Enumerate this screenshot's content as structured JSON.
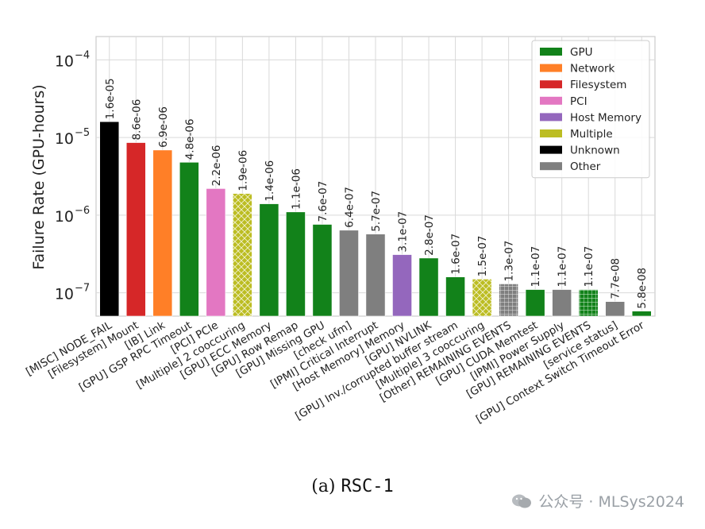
{
  "chart_data": {
    "type": "bar",
    "ylabel": "Failure Rate (GPU-hours)",
    "yscale": "log",
    "ylim": [
      5e-08,
      0.0002
    ],
    "yticks": [
      {
        "value": 1e-07,
        "base": "10",
        "exp": "−7"
      },
      {
        "value": 1e-06,
        "base": "10",
        "exp": "−6"
      },
      {
        "value": 1e-05,
        "base": "10",
        "exp": "−5"
      },
      {
        "value": 0.0001,
        "base": "10",
        "exp": "−4"
      }
    ],
    "grid": true,
    "legend_position": "top-right",
    "legend": [
      {
        "name": "GPU",
        "color": "#12821a"
      },
      {
        "name": "Network",
        "color": "#ff7f27"
      },
      {
        "name": "Filesystem",
        "color": "#d62728"
      },
      {
        "name": "PCI",
        "color": "#e377c2"
      },
      {
        "name": "Host Memory",
        "color": "#9467bd"
      },
      {
        "name": "Multiple",
        "color": "#bcbd22"
      },
      {
        "name": "Unknown",
        "color": "#000000"
      },
      {
        "name": "Other",
        "color": "#7f7f7f"
      }
    ],
    "bars": [
      {
        "category": "[MISC] NODE_FAIL",
        "value": 1.6e-05,
        "label": "1.6e-05",
        "group": "Unknown",
        "hatch": "none"
      },
      {
        "category": "[Filesystem] Mount",
        "value": 8.6e-06,
        "label": "8.6e-06",
        "group": "Filesystem",
        "hatch": "none"
      },
      {
        "category": "[IB] Link",
        "value": 6.9e-06,
        "label": "6.9e-06",
        "group": "Network",
        "hatch": "none"
      },
      {
        "category": "[GPU] GSP RPC Timeout",
        "value": 4.8e-06,
        "label": "4.8e-06",
        "group": "GPU",
        "hatch": "none"
      },
      {
        "category": "[PCI] PCIe",
        "value": 2.2e-06,
        "label": "2.2e-06",
        "group": "PCI",
        "hatch": "none"
      },
      {
        "category": "[Multiple] 2 cooccuring",
        "value": 1.9e-06,
        "label": "1.9e-06",
        "group": "Multiple",
        "hatch": "cross"
      },
      {
        "category": "[GPU] ECC Memory",
        "value": 1.4e-06,
        "label": "1.4e-06",
        "group": "GPU",
        "hatch": "none"
      },
      {
        "category": "[GPU] Row Remap",
        "value": 1.1e-06,
        "label": "1.1e-06",
        "group": "GPU",
        "hatch": "none"
      },
      {
        "category": "[GPU] Missing GPU",
        "value": 7.6e-07,
        "label": "7.6e-07",
        "group": "GPU",
        "hatch": "none"
      },
      {
        "category": "[check ufm]",
        "value": 6.4e-07,
        "label": "6.4e-07",
        "group": "Other",
        "hatch": "none"
      },
      {
        "category": "[IPMI] Critical Interrupt",
        "value": 5.7e-07,
        "label": "5.7e-07",
        "group": "Other",
        "hatch": "none"
      },
      {
        "category": "[Host Memory] Memory",
        "value": 3.1e-07,
        "label": "3.1e-07",
        "group": "Host Memory",
        "hatch": "none"
      },
      {
        "category": "[GPU] NVLINK",
        "value": 2.8e-07,
        "label": "2.8e-07",
        "group": "GPU",
        "hatch": "none"
      },
      {
        "category": "[GPU] Inv./corrupted buffer stream",
        "value": 1.6e-07,
        "label": "1.6e-07",
        "group": "GPU",
        "hatch": "none"
      },
      {
        "category": "[Multiple] 3 cooccuring",
        "value": 1.5e-07,
        "label": "1.5e-07",
        "group": "Multiple",
        "hatch": "cross"
      },
      {
        "category": "[Other] REMAINING EVENTS",
        "value": 1.3e-07,
        "label": "1.3e-07",
        "group": "Other",
        "hatch": "grid"
      },
      {
        "category": "[GPU] CUDA Memtest",
        "value": 1.1e-07,
        "label": "1.1e-07",
        "group": "GPU",
        "hatch": "none"
      },
      {
        "category": "[IPMI] Power Supply",
        "value": 1.1e-07,
        "label": "1.1e-07",
        "group": "Other",
        "hatch": "none"
      },
      {
        "category": "[GPU] REMAINING EVENTS",
        "value": 1.1e-07,
        "label": "1.1e-07",
        "group": "GPU",
        "hatch": "grid"
      },
      {
        "category": "[service status]",
        "value": 7.7e-08,
        "label": "7.7e-08",
        "group": "Other",
        "hatch": "none"
      },
      {
        "category": "[GPU] Context Switch Timeout Error",
        "value": 5.8e-08,
        "label": "5.8e-08",
        "group": "GPU",
        "hatch": "none"
      }
    ]
  },
  "caption": {
    "prefix": "(a) ",
    "name": "RSC-1"
  },
  "watermark": {
    "text": "公众号 · MLSys2024"
  }
}
